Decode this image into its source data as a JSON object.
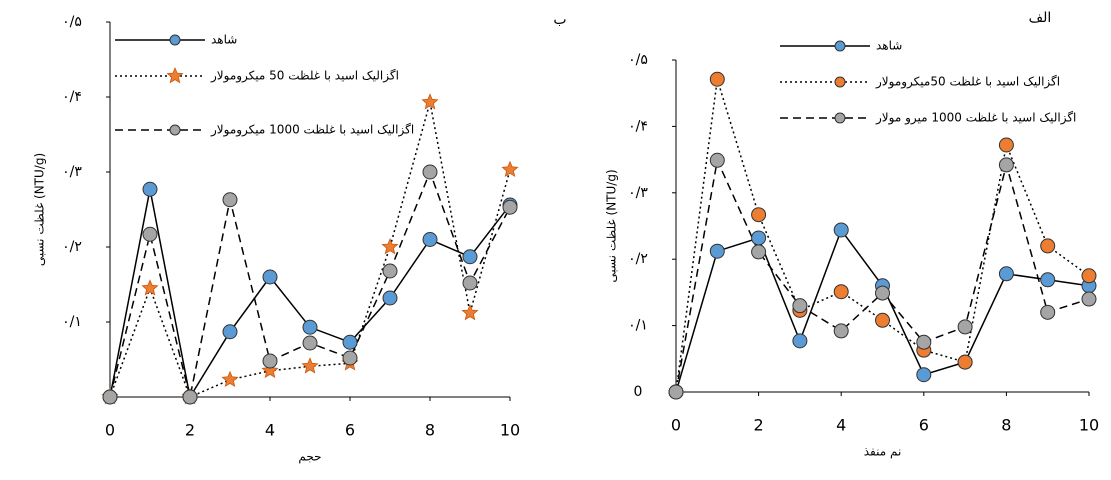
{
  "chart_data": [
    {
      "type": "line",
      "title": "ب",
      "x_label": "حجم",
      "y_label": "غلظت نسبی (NTU/g)",
      "x": [
        0,
        1,
        2,
        3,
        4,
        5,
        6,
        7,
        8,
        9,
        10
      ],
      "xlim": [
        0,
        10
      ],
      "xticks": [
        0,
        2,
        4,
        6,
        8,
        10
      ],
      "ylim": [
        0,
        0.5
      ],
      "yticks": [
        {
          "value": 0.1,
          "label": "۰/۱"
        },
        {
          "value": 0.2,
          "label": "۰/۲"
        },
        {
          "value": 0.3,
          "label": "۰/۳"
        },
        {
          "value": 0.4,
          "label": "۰/۴"
        },
        {
          "value": 0.5,
          "label": "۰/۵"
        }
      ],
      "series": [
        {
          "name": "شاهد",
          "color": "#5b9bd5",
          "line_style": "solid",
          "marker": "circle",
          "values": [
            0,
            0.277,
            0,
            0.087,
            0.16,
            0.093,
            0.073,
            0.132,
            0.21,
            0.187,
            0.256
          ]
        },
        {
          "name": "اگزالیک اسید با غلظت 50 میکرومولار",
          "color": "#ed7d31",
          "line_style": "dotted",
          "marker": "star",
          "values": [
            0,
            0.145,
            0,
            0.023,
            0.035,
            0.041,
            0.045,
            0.2,
            0.393,
            0.112,
            0.303
          ]
        },
        {
          "name": "اگزالیک اسید با غلظت 1000 میکرومولار",
          "color": "#a5a5a5",
          "line_style": "dashed",
          "marker": "circle",
          "values": [
            0,
            0.217,
            0,
            0.263,
            0.048,
            0.072,
            0.052,
            0.168,
            0.3,
            0.152,
            0.253
          ]
        }
      ]
    },
    {
      "type": "line",
      "title": "الف",
      "x_label": "نم منفذ",
      "y_label": "غلظت نسبی (NTU/g)",
      "x": [
        0,
        1,
        2,
        3,
        4,
        5,
        6,
        7,
        8,
        9,
        10
      ],
      "xlim": [
        0,
        10
      ],
      "xticks": [
        0,
        2,
        4,
        6,
        8,
        10
      ],
      "ylim": [
        0,
        0.5
      ],
      "yticks": [
        0,
        {
          "value": 0.1,
          "label": "۰/۱"
        },
        {
          "value": 0.2,
          "label": "۰/۲"
        },
        {
          "value": 0.3,
          "label": "۰/۳"
        },
        {
          "value": 0.4,
          "label": "۰/۴"
        },
        {
          "value": 0.5,
          "label": "۰/۵"
        }
      ],
      "series": [
        {
          "name": "شاهد",
          "color": "#5b9bd5",
          "line_style": "solid",
          "marker": "circle",
          "values": [
            0,
            0.212,
            0.232,
            0.077,
            0.244,
            0.16,
            0.026,
            0.045,
            0.178,
            0.169,
            0.16
          ]
        },
        {
          "name": "اگزالیک اسید با غلظت 50میکرومولار",
          "color": "#ed7d31",
          "line_style": "dotted",
          "marker": "circle",
          "values": [
            0,
            0.471,
            0.267,
            0.123,
            0.151,
            0.108,
            0.063,
            0.045,
            0.372,
            0.22,
            0.175
          ]
        },
        {
          "name": "اگزالیک اسید با غلظت 1000 میرو مولار",
          "color": "#a5a5a5",
          "line_style": "dashed",
          "marker": "circle",
          "values": [
            0,
            0.349,
            0.211,
            0.13,
            0.092,
            0.149,
            0.075,
            0.098,
            0.342,
            0.12,
            0.14
          ]
        }
      ]
    }
  ]
}
